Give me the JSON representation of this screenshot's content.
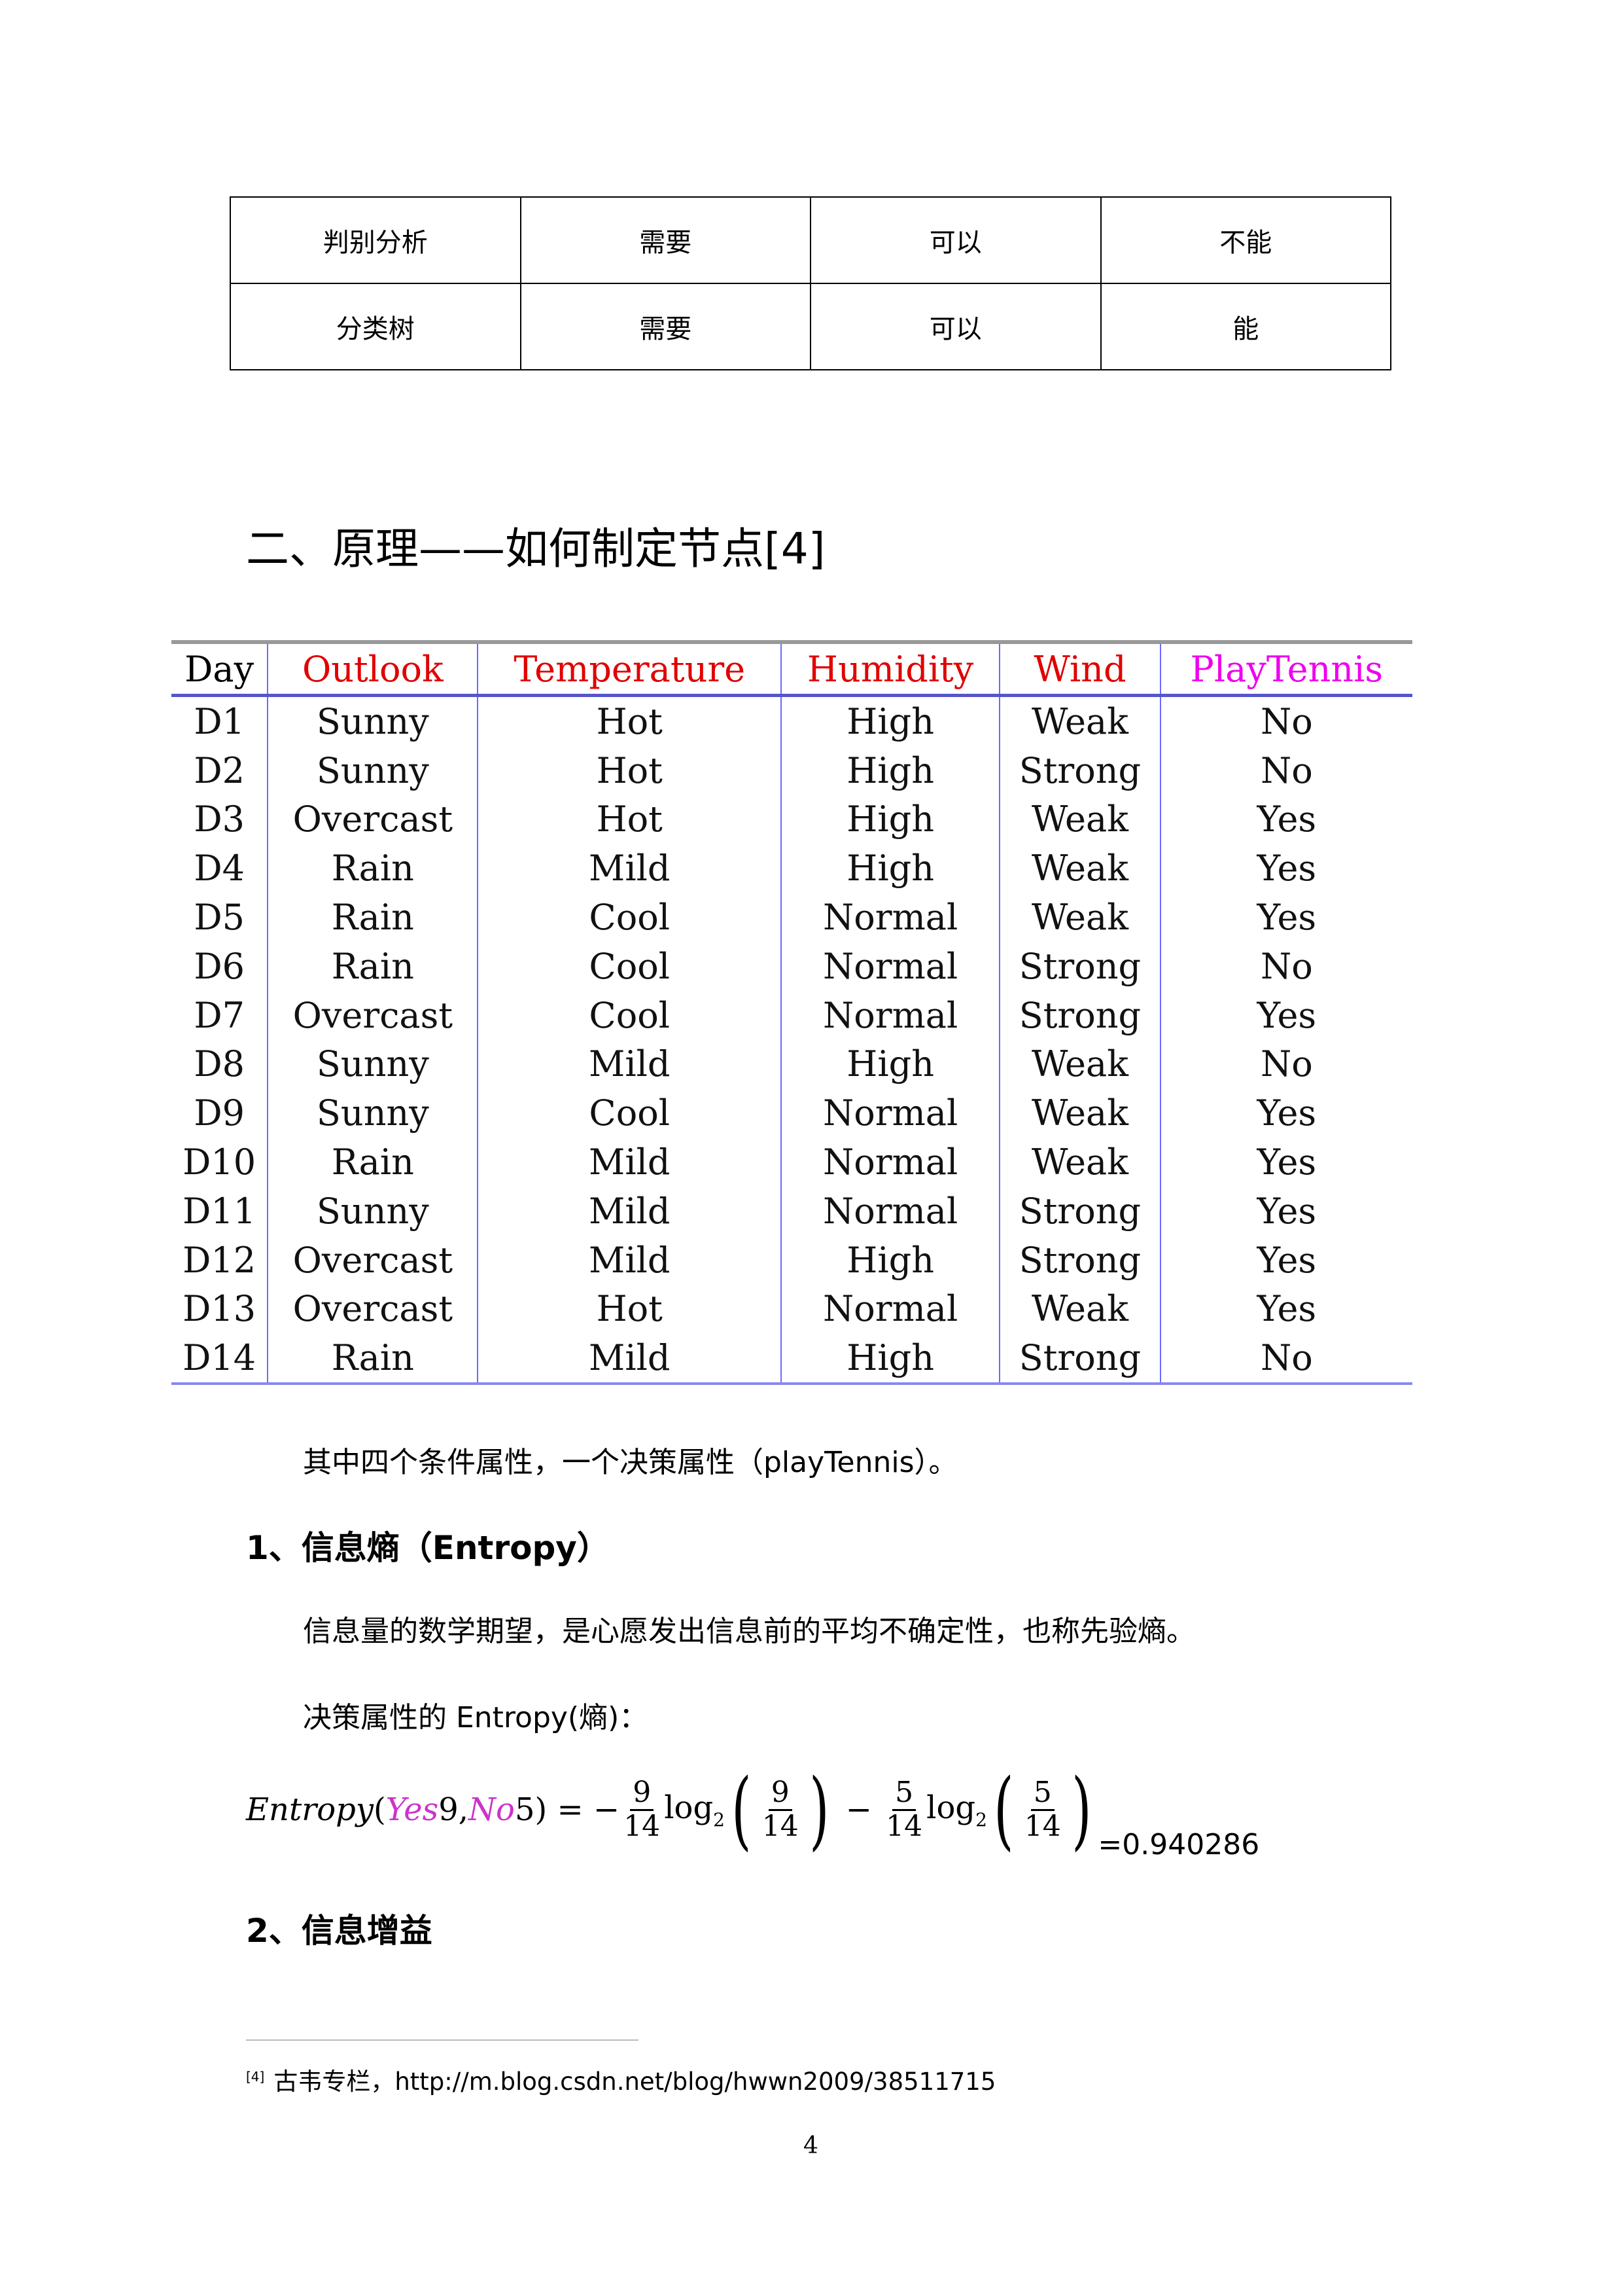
{
  "compare_table": {
    "rows": [
      [
        "判别分析",
        "需要",
        "可以",
        "不能"
      ],
      [
        "分类树",
        "需要",
        "可以",
        "能"
      ]
    ]
  },
  "section_heading": "二、原理——如何制定节点[4]",
  "data_table": {
    "headers": [
      "Day",
      "Outlook",
      "Temperature",
      "Humidity",
      "Wind",
      "PlayTennis"
    ],
    "header_colors": {
      "day": "#000000",
      "attributes": "#e00000",
      "decision": "#ee00ee"
    },
    "rows": [
      [
        "D1",
        "Sunny",
        "Hot",
        "High",
        "Weak",
        "No"
      ],
      [
        "D2",
        "Sunny",
        "Hot",
        "High",
        "Strong",
        "No"
      ],
      [
        "D3",
        "Overcast",
        "Hot",
        "High",
        "Weak",
        "Yes"
      ],
      [
        "D4",
        "Rain",
        "Mild",
        "High",
        "Weak",
        "Yes"
      ],
      [
        "D5",
        "Rain",
        "Cool",
        "Normal",
        "Weak",
        "Yes"
      ],
      [
        "D6",
        "Rain",
        "Cool",
        "Normal",
        "Strong",
        "No"
      ],
      [
        "D7",
        "Overcast",
        "Cool",
        "Normal",
        "Strong",
        "Yes"
      ],
      [
        "D8",
        "Sunny",
        "Mild",
        "High",
        "Weak",
        "No"
      ],
      [
        "D9",
        "Sunny",
        "Cool",
        "Normal",
        "Weak",
        "Yes"
      ],
      [
        "D10",
        "Rain",
        "Mild",
        "Normal",
        "Weak",
        "Yes"
      ],
      [
        "D11",
        "Sunny",
        "Mild",
        "Normal",
        "Strong",
        "Yes"
      ],
      [
        "D12",
        "Overcast",
        "Mild",
        "High",
        "Strong",
        "Yes"
      ],
      [
        "D13",
        "Overcast",
        "Hot",
        "Normal",
        "Weak",
        "Yes"
      ],
      [
        "D14",
        "Rain",
        "Mild",
        "High",
        "Strong",
        "No"
      ]
    ]
  },
  "para_attributes": "其中四个条件属性，一个决策属性（playTennis）。",
  "sub1_heading": "1、信息熵（Entropy）",
  "sub1_para": "信息量的数学期望，是心愿发出信息前的平均不确定性，也称先验熵。",
  "sub1_label": "决策属性的 Entropy(熵)：",
  "formula": {
    "fn": "Entropy",
    "open": "(",
    "yes": "Yes",
    "yes_n": "9",
    "comma": ", ",
    "no": "No",
    "no_n": "5",
    "close": ")",
    "eq": " = −",
    "n1": "9",
    "d": "14",
    "log": "log",
    "base": "2",
    "minus": " − ",
    "n2": "5",
    "result": "=0.940286"
  },
  "sub2_heading": "2、信息增益",
  "footnote": {
    "mark": "[4]",
    "text": "古韦专栏，http://m.blog.csdn.net/blog/hwwn2009/38511715"
  },
  "page_number": "4"
}
